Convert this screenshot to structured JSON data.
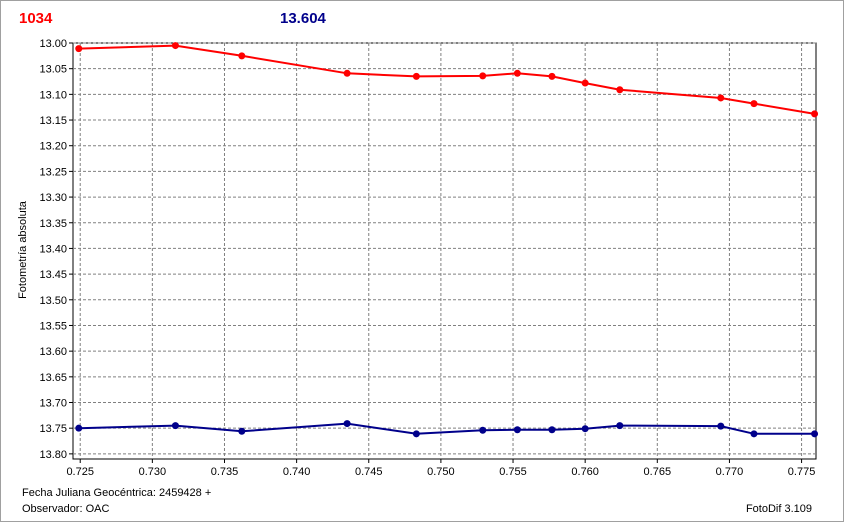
{
  "header": {
    "left_label": "1034",
    "left_color": "#ff0000",
    "right_label": "13.604",
    "right_color": "#00008b"
  },
  "footer": {
    "date_label": "Fecha Juliana Geocéntrica: 2459428 +",
    "observer_label": "Observador: OAC",
    "software_label": "FotoDif 3.109"
  },
  "chart_data": {
    "type": "line",
    "ylabel": "Fotometría absoluta",
    "xlabel": "",
    "xlim": [
      0.7245,
      0.776
    ],
    "ylim": [
      13.0,
      13.81
    ],
    "y_inverted": true,
    "grid": true,
    "x_ticks": [
      "0.725",
      "0.730",
      "0.735",
      "0.740",
      "0.745",
      "0.750",
      "0.755",
      "0.760",
      "0.765",
      "0.770",
      "0.775"
    ],
    "y_ticks": [
      "13.00",
      "13.05",
      "13.10",
      "13.15",
      "13.20",
      "13.25",
      "13.30",
      "13.35",
      "13.40",
      "13.45",
      "13.50",
      "13.55",
      "13.60",
      "13.65",
      "13.70",
      "13.75",
      "13.80"
    ],
    "series": [
      {
        "color": "#ff0000",
        "x": [
          0.7249,
          0.7316,
          0.7362,
          0.7435,
          0.7483,
          0.7529,
          0.7553,
          0.7577,
          0.76,
          0.7624,
          0.7694,
          0.7717,
          0.7759
        ],
        "y": [
          13.011,
          13.005,
          13.025,
          13.059,
          13.065,
          13.064,
          13.059,
          13.065,
          13.078,
          13.091,
          13.107,
          13.118,
          13.138
        ]
      },
      {
        "color": "#00008b",
        "x": [
          0.7249,
          0.7316,
          0.7362,
          0.7435,
          0.7483,
          0.7529,
          0.7553,
          0.7577,
          0.76,
          0.7624,
          0.7694,
          0.7717,
          0.7759
        ],
        "y": [
          13.75,
          13.745,
          13.756,
          13.741,
          13.761,
          13.754,
          13.753,
          13.753,
          13.751,
          13.745,
          13.746,
          13.761,
          13.761
        ]
      }
    ]
  }
}
